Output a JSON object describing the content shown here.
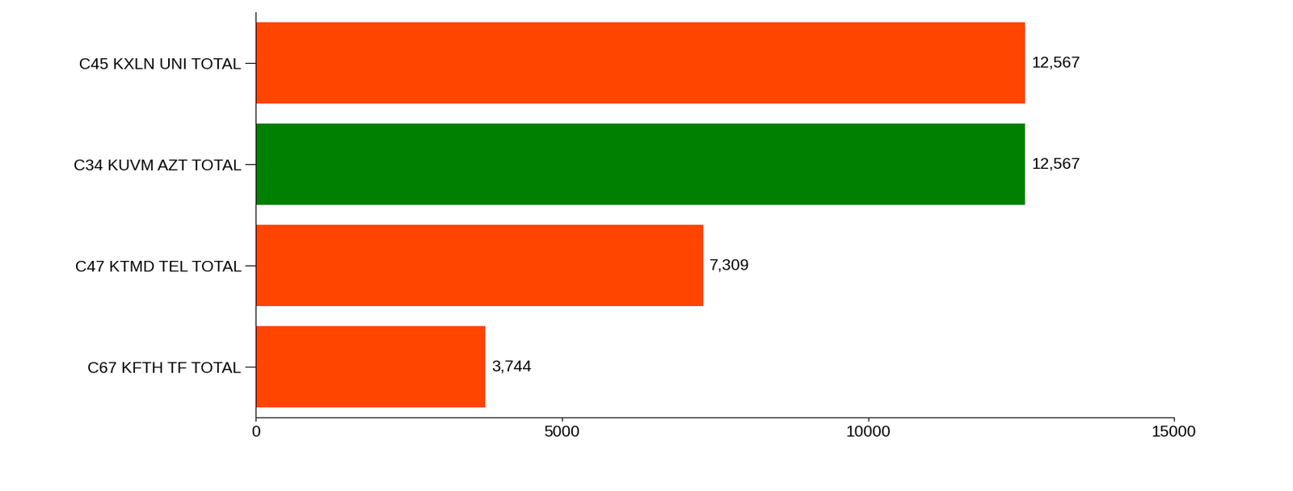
{
  "chart_data": {
    "type": "bar",
    "orientation": "horizontal",
    "categories": [
      "C45 KXLN UNI TOTAL",
      "C34 KUVM AZT TOTAL",
      "C47 KTMD TEL TOTAL",
      "C67 KFTH TF TOTAL"
    ],
    "values": [
      12567,
      12567,
      7309,
      3744
    ],
    "value_labels": [
      "12,567",
      "12,567",
      "7,309",
      "3,744"
    ],
    "colors": [
      "#ff4500",
      "#008000",
      "#ff4500",
      "#ff4500"
    ],
    "xlim": [
      0,
      15000
    ],
    "xticks": [
      0,
      5000,
      10000,
      15000
    ],
    "data_labels": true,
    "grid": false
  }
}
